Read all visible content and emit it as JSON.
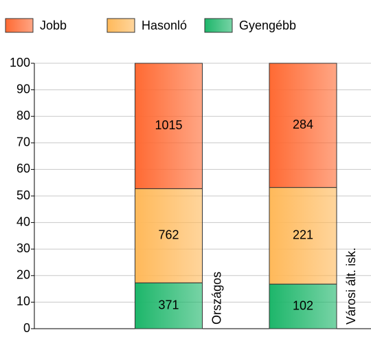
{
  "chart_data": {
    "type": "stacked_percent_bar",
    "categories": [
      "Országos",
      "Városi ált. isk."
    ],
    "series": [
      {
        "name": "Gyengébb",
        "color": "#1db66a",
        "values": [
          371,
          102
        ]
      },
      {
        "name": "Hasonló",
        "color": "#ffb95a",
        "values": [
          762,
          221
        ]
      },
      {
        "name": "Jobb",
        "color": "#ff6a33",
        "values": [
          1015,
          284
        ]
      }
    ],
    "legend_order": [
      2,
      1,
      0
    ],
    "ylim": [
      0,
      100
    ],
    "yticks": [
      0,
      10,
      20,
      30,
      40,
      50,
      60,
      70,
      80,
      90,
      100
    ],
    "grid": true
  }
}
